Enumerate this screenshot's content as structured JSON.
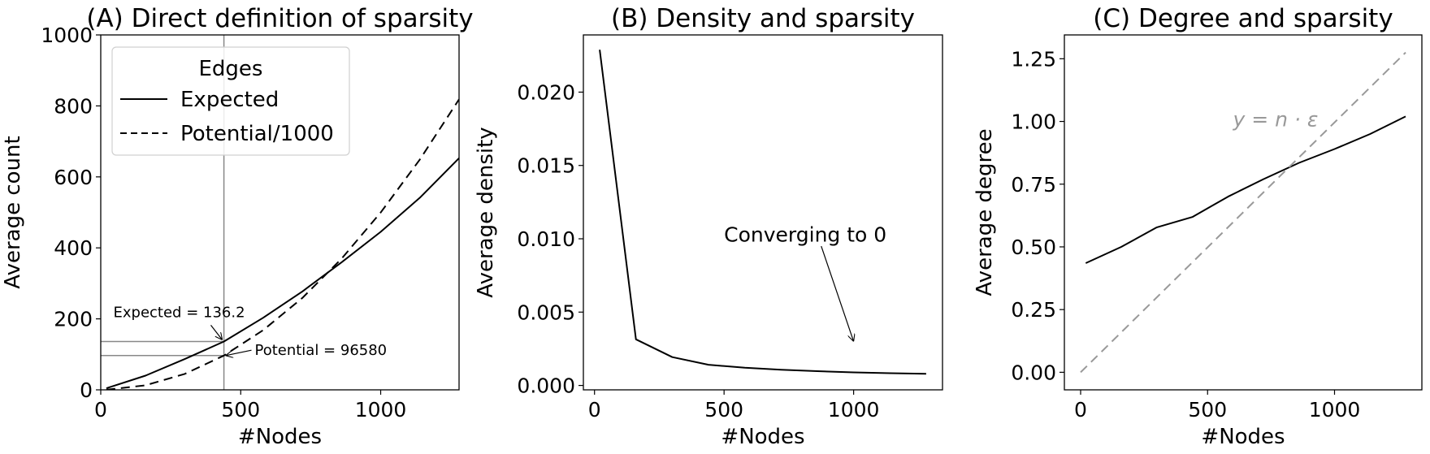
{
  "chart_data": [
    {
      "type": "line",
      "title": "(A) Direct definition of sparsity",
      "xlabel": "#Nodes",
      "ylabel": "Average count",
      "xlim": [
        0,
        1280
      ],
      "ylim": [
        0,
        1000
      ],
      "xticks": [
        0,
        500,
        1000
      ],
      "xtick_labels": [
        "0",
        "500",
        "1000"
      ],
      "yticks": [
        0,
        200,
        400,
        600,
        800,
        1000
      ],
      "ytick_labels": [
        "0",
        "200",
        "400",
        "600",
        "800",
        "1000"
      ],
      "x": [
        20,
        160,
        300,
        440,
        580,
        720,
        860,
        1000,
        1140,
        1280
      ],
      "series": [
        {
          "name": "Expected",
          "style": "solid",
          "color": "#000000",
          "values": [
            4.35,
            40.0,
            86.7,
            136.2,
            203.0,
            277.2,
            359.0,
            445.0,
            541.5,
            652.8
          ]
        },
        {
          "name": "Potential/1000",
          "style": "dashed",
          "color": "#000000",
          "values": [
            0.19,
            12.72,
            44.85,
            96.58,
            167.91,
            258.84,
            369.37,
            499.5,
            649.23,
            818.56
          ]
        }
      ],
      "legend": {
        "title": "Edges",
        "position": "upper-left"
      },
      "reference_lines": {
        "color": "#888888",
        "vline_x": 440,
        "hlines_y": [
          136.2,
          96.58
        ]
      },
      "annotations": [
        {
          "text": "Expected = 136.2",
          "text_at": [
            45,
            205
          ],
          "arrow_to": [
            440,
            136.2
          ]
        },
        {
          "text": "Potential = 96580",
          "text_at": [
            550,
            98
          ],
          "arrow_to": [
            440,
            96.58
          ]
        }
      ]
    },
    {
      "type": "line",
      "title": "(B) Density and sparsity",
      "xlabel": "#Nodes",
      "ylabel": "Average density",
      "xlim": [
        -43,
        1343
      ],
      "ylim": [
        -0.0003,
        0.0239
      ],
      "xticks": [
        0,
        500,
        1000
      ],
      "xtick_labels": [
        "0",
        "500",
        "1000"
      ],
      "yticks": [
        0,
        0.005,
        0.01,
        0.015,
        0.02
      ],
      "ytick_labels": [
        "0.000",
        "0.005",
        "0.010",
        "0.015",
        "0.020"
      ],
      "x": [
        20,
        160,
        300,
        440,
        580,
        720,
        860,
        1000,
        1140,
        1280
      ],
      "series": [
        {
          "name": "Average density",
          "style": "solid",
          "color": "#000000",
          "values": [
            0.02289,
            0.003145,
            0.001933,
            0.00141,
            0.001209,
            0.001071,
            0.000972,
            0.000891,
            0.000834,
            0.000797
          ]
        }
      ],
      "annotations": [
        {
          "text": "Converging to 0",
          "text_at": [
            500,
            0.0098
          ],
          "arrow_from": [
            875,
            0.0095
          ],
          "arrow_to": [
            1000,
            0.003
          ]
        }
      ]
    },
    {
      "type": "line",
      "title": "(C) Degree and sparsity",
      "xlabel": "#Nodes",
      "ylabel": "Average degree",
      "xlim": [
        -64,
        1344
      ],
      "ylim": [
        -0.07,
        1.345
      ],
      "xticks": [
        0,
        500,
        1000
      ],
      "xtick_labels": [
        "0",
        "500",
        "1000"
      ],
      "yticks": [
        0,
        0.25,
        0.5,
        0.75,
        1.0,
        1.25
      ],
      "ytick_labels": [
        "0.00",
        "0.25",
        "0.50",
        "0.75",
        "1.00",
        "1.25"
      ],
      "x": [
        20,
        160,
        300,
        440,
        580,
        720,
        860,
        1000,
        1140,
        1280
      ],
      "series": [
        {
          "name": "Average degree",
          "style": "solid",
          "color": "#000000",
          "values": [
            0.435,
            0.5,
            0.578,
            0.619,
            0.7,
            0.77,
            0.835,
            0.89,
            0.95,
            1.02
          ]
        },
        {
          "name": "y = n·ε",
          "style": "dashed",
          "color": "#999999",
          "x": [
            0,
            1280
          ],
          "values": [
            0,
            1.275
          ]
        }
      ],
      "annotations": [
        {
          "text": "y = n · ε",
          "text_at": [
            600,
            0.98
          ],
          "color": "#999999"
        }
      ]
    }
  ]
}
